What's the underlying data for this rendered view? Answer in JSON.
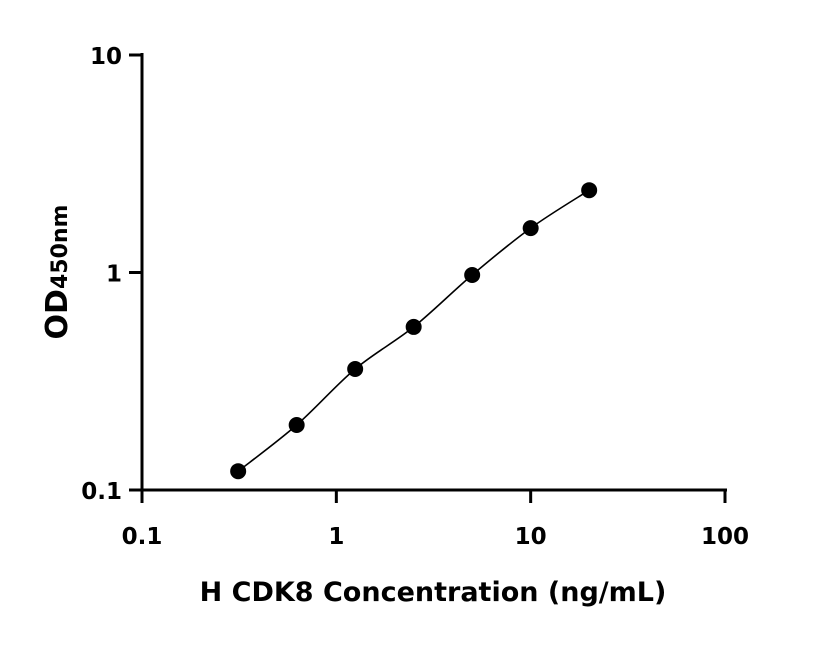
{
  "chart_data": {
    "type": "scatter",
    "title": "",
    "xlabel": "H CDK8 Concentration (ng/mL)",
    "ylabel": "OD",
    "ylabel_subscript": "450nm",
    "x_scale": "log",
    "y_scale": "log",
    "xlim": [
      0.1,
      100
    ],
    "ylim": [
      0.1,
      10
    ],
    "x_ticks": [
      "0.1",
      "1",
      "10",
      "100"
    ],
    "y_ticks": [
      "0.1",
      "1",
      "10"
    ],
    "grid": false,
    "fit_line": true,
    "marker_color": "#000000",
    "x": [
      0.3125,
      0.625,
      1.25,
      2.5,
      5,
      10,
      20
    ],
    "y": [
      0.122,
      0.199,
      0.36,
      0.562,
      0.974,
      1.6,
      2.39
    ]
  }
}
